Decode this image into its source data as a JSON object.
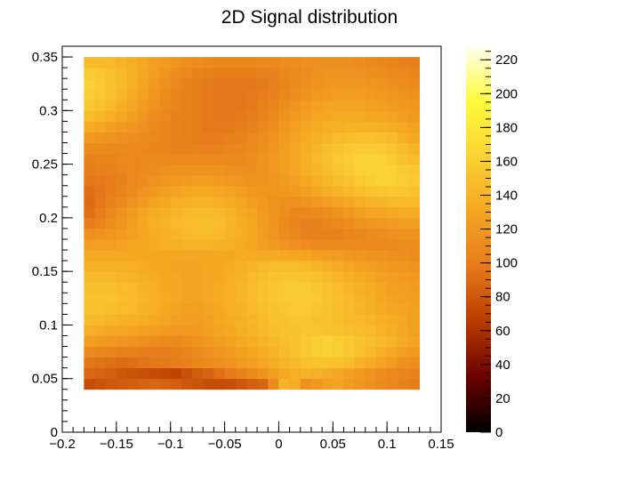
{
  "chart_data": {
    "type": "heatmap",
    "title": "2D Signal distribution",
    "xlabel": "",
    "ylabel": "",
    "xlim": [
      -0.2,
      0.15
    ],
    "ylim": [
      0,
      0.36
    ],
    "zlim": [
      0,
      228
    ],
    "x_ticks": [
      -0.2,
      -0.15,
      -0.1,
      -0.05,
      0,
      0.05,
      0.1,
      0.15
    ],
    "x_tick_labels": [
      "−0.2",
      "−0.15",
      "−0.1",
      "−0.05",
      "0",
      "0.05",
      "0.1",
      "0.15"
    ],
    "y_ticks": [
      0,
      0.05,
      0.1,
      0.15,
      0.2,
      0.25,
      0.3,
      0.35
    ],
    "y_tick_labels": [
      "0",
      "0.05",
      "0.1",
      "0.15",
      "0.2",
      "0.25",
      "0.3",
      "0.35"
    ],
    "colorbar_ticks": [
      0,
      20,
      40,
      60,
      80,
      100,
      120,
      140,
      160,
      180,
      200,
      220
    ],
    "colorbar_tick_labels": [
      "0",
      "20",
      "40",
      "60",
      "80",
      "100",
      "120",
      "140",
      "160",
      "180",
      "200",
      "220"
    ],
    "colormap": "black-darkred-orange-yellow-white",
    "colormap_stops": [
      "#000000",
      "#6a0000",
      "#b83a00",
      "#e67a1a",
      "#f5a623",
      "#fbd233",
      "#fdfc3a",
      "#fffff0"
    ],
    "grid": false,
    "bins": {
      "x_min": -0.18,
      "x_max": 0.13,
      "nx": 31,
      "y_min": 0.04,
      "y_max": 0.35,
      "ny": 31
    },
    "z": [
      [
        75,
        78,
        80,
        82,
        84,
        86,
        88,
        86,
        84,
        80,
        78,
        75,
        74,
        76,
        80,
        84,
        86,
        110,
        140,
        135,
        115,
        120,
        125,
        128,
        122,
        118,
        114,
        110,
        108,
        104,
        100
      ],
      [
        88,
        86,
        84,
        80,
        78,
        76,
        74,
        72,
        70,
        76,
        82,
        86,
        92,
        98,
        104,
        110,
        116,
        124,
        132,
        138,
        140,
        138,
        134,
        130,
        126,
        120,
        116,
        112,
        108,
        106,
        104
      ],
      [
        96,
        94,
        92,
        90,
        92,
        94,
        96,
        98,
        100,
        104,
        108,
        110,
        114,
        118,
        122,
        126,
        130,
        136,
        142,
        146,
        150,
        152,
        152,
        150,
        146,
        140,
        134,
        128,
        122,
        116,
        112
      ],
      [
        110,
        108,
        106,
        104,
        102,
        100,
        100,
        100,
        102,
        106,
        110,
        114,
        118,
        122,
        126,
        130,
        134,
        140,
        146,
        150,
        156,
        160,
        162,
        160,
        156,
        150,
        144,
        138,
        132,
        126,
        120
      ],
      [
        124,
        122,
        120,
        118,
        116,
        114,
        112,
        110,
        110,
        112,
        116,
        120,
        124,
        128,
        132,
        136,
        140,
        144,
        148,
        152,
        156,
        160,
        162,
        160,
        156,
        152,
        148,
        144,
        140,
        134,
        128
      ],
      [
        136,
        134,
        132,
        130,
        128,
        126,
        124,
        122,
        120,
        120,
        122,
        124,
        128,
        132,
        136,
        140,
        144,
        148,
        150,
        152,
        154,
        154,
        152,
        150,
        148,
        146,
        144,
        140,
        136,
        132,
        126
      ],
      [
        146,
        144,
        142,
        140,
        138,
        136,
        132,
        130,
        126,
        124,
        124,
        126,
        130,
        134,
        138,
        142,
        146,
        150,
        152,
        154,
        154,
        152,
        150,
        148,
        146,
        144,
        142,
        138,
        134,
        130,
        126
      ],
      [
        150,
        150,
        148,
        146,
        144,
        140,
        136,
        132,
        128,
        126,
        126,
        128,
        132,
        136,
        140,
        144,
        148,
        152,
        154,
        156,
        156,
        154,
        152,
        148,
        146,
        142,
        138,
        134,
        130,
        128,
        126
      ],
      [
        150,
        150,
        150,
        148,
        146,
        142,
        138,
        134,
        130,
        128,
        128,
        130,
        134,
        138,
        142,
        146,
        150,
        154,
        156,
        158,
        158,
        156,
        152,
        148,
        144,
        140,
        136,
        132,
        128,
        126,
        124
      ],
      [
        148,
        148,
        148,
        146,
        144,
        140,
        136,
        132,
        130,
        128,
        128,
        130,
        134,
        138,
        142,
        146,
        150,
        154,
        156,
        158,
        158,
        154,
        150,
        146,
        142,
        138,
        134,
        130,
        126,
        124,
        122
      ],
      [
        144,
        144,
        144,
        142,
        140,
        138,
        134,
        132,
        130,
        128,
        128,
        130,
        132,
        136,
        140,
        144,
        148,
        152,
        154,
        154,
        152,
        150,
        146,
        142,
        138,
        134,
        130,
        126,
        124,
        122,
        120
      ],
      [
        138,
        138,
        138,
        138,
        136,
        134,
        132,
        130,
        128,
        128,
        128,
        130,
        132,
        134,
        138,
        142,
        144,
        146,
        146,
        146,
        144,
        142,
        138,
        134,
        130,
        126,
        124,
        122,
        120,
        118,
        116
      ],
      [
        132,
        132,
        132,
        132,
        132,
        132,
        130,
        130,
        130,
        130,
        130,
        130,
        132,
        132,
        134,
        134,
        134,
        134,
        132,
        130,
        128,
        126,
        124,
        122,
        120,
        118,
        116,
        116,
        114,
        114,
        112
      ],
      [
        124,
        126,
        126,
        128,
        130,
        132,
        134,
        136,
        138,
        140,
        140,
        140,
        138,
        136,
        134,
        130,
        126,
        122,
        118,
        114,
        112,
        110,
        110,
        110,
        110,
        110,
        110,
        110,
        110,
        112,
        112
      ],
      [
        114,
        116,
        118,
        122,
        126,
        130,
        134,
        138,
        142,
        144,
        146,
        146,
        144,
        140,
        136,
        130,
        124,
        118,
        112,
        108,
        104,
        102,
        102,
        104,
        106,
        108,
        110,
        112,
        114,
        116,
        116
      ],
      [
        100,
        106,
        112,
        118,
        124,
        130,
        136,
        140,
        144,
        146,
        148,
        148,
        146,
        142,
        136,
        130,
        122,
        116,
        110,
        106,
        104,
        104,
        106,
        108,
        112,
        116,
        118,
        120,
        122,
        124,
        124
      ],
      [
        92,
        100,
        108,
        116,
        122,
        128,
        134,
        138,
        142,
        144,
        146,
        146,
        144,
        140,
        134,
        128,
        122,
        116,
        112,
        108,
        108,
        110,
        112,
        116,
        120,
        124,
        128,
        130,
        132,
        134,
        134
      ],
      [
        90,
        96,
        104,
        110,
        116,
        122,
        128,
        132,
        136,
        138,
        140,
        140,
        138,
        134,
        130,
        124,
        120,
        116,
        114,
        114,
        116,
        120,
        124,
        128,
        132,
        136,
        140,
        142,
        144,
        144,
        144
      ],
      [
        92,
        96,
        100,
        106,
        110,
        116,
        120,
        124,
        128,
        130,
        132,
        132,
        130,
        128,
        124,
        120,
        118,
        118,
        120,
        122,
        126,
        130,
        136,
        140,
        144,
        148,
        152,
        154,
        156,
        154,
        152
      ],
      [
        96,
        98,
        100,
        104,
        108,
        112,
        116,
        118,
        120,
        122,
        124,
        124,
        122,
        120,
        118,
        116,
        116,
        118,
        122,
        126,
        130,
        136,
        142,
        148,
        152,
        156,
        160,
        162,
        162,
        160,
        156
      ],
      [
        100,
        102,
        104,
        106,
        108,
        110,
        112,
        114,
        116,
        116,
        116,
        116,
        116,
        114,
        114,
        114,
        116,
        120,
        124,
        130,
        136,
        142,
        148,
        154,
        158,
        162,
        164,
        164,
        162,
        158,
        154
      ],
      [
        104,
        106,
        106,
        108,
        108,
        110,
        110,
        110,
        110,
        110,
        110,
        110,
        110,
        110,
        110,
        112,
        116,
        120,
        126,
        132,
        138,
        144,
        150,
        156,
        160,
        164,
        164,
        162,
        158,
        152,
        146
      ],
      [
        110,
        110,
        110,
        110,
        108,
        108,
        106,
        106,
        104,
        104,
        104,
        104,
        104,
        106,
        108,
        110,
        114,
        118,
        124,
        130,
        136,
        142,
        148,
        152,
        156,
        158,
        158,
        156,
        152,
        146,
        140
      ],
      [
        120,
        118,
        116,
        114,
        112,
        110,
        108,
        106,
        104,
        102,
        100,
        100,
        100,
        102,
        104,
        108,
        112,
        116,
        122,
        128,
        134,
        138,
        142,
        146,
        148,
        150,
        150,
        148,
        144,
        138,
        132
      ],
      [
        134,
        130,
        126,
        122,
        118,
        114,
        110,
        106,
        104,
        102,
        100,
        98,
        98,
        98,
        100,
        104,
        108,
        114,
        120,
        126,
        130,
        134,
        136,
        138,
        140,
        140,
        140,
        138,
        134,
        130,
        126
      ],
      [
        146,
        142,
        136,
        130,
        124,
        118,
        112,
        108,
        104,
        102,
        100,
        98,
        96,
        96,
        98,
        100,
        104,
        110,
        116,
        122,
        126,
        130,
        132,
        134,
        134,
        134,
        132,
        130,
        128,
        124,
        120
      ],
      [
        154,
        150,
        144,
        136,
        130,
        122,
        116,
        110,
        106,
        102,
        100,
        98,
        96,
        96,
        96,
        98,
        102,
        106,
        112,
        118,
        122,
        126,
        128,
        128,
        128,
        128,
        126,
        124,
        122,
        120,
        118
      ],
      [
        160,
        156,
        150,
        142,
        134,
        126,
        118,
        112,
        106,
        102,
        100,
        98,
        96,
        96,
        96,
        98,
        100,
        104,
        108,
        112,
        116,
        120,
        122,
        124,
        124,
        124,
        122,
        120,
        118,
        116,
        114
      ],
      [
        162,
        158,
        152,
        144,
        136,
        128,
        120,
        114,
        108,
        104,
        100,
        98,
        96,
        96,
        96,
        96,
        98,
        102,
        106,
        110,
        114,
        116,
        118,
        120,
        120,
        120,
        118,
        116,
        114,
        112,
        110
      ],
      [
        156,
        154,
        150,
        144,
        138,
        130,
        124,
        118,
        112,
        108,
        104,
        102,
        100,
        100,
        100,
        100,
        102,
        104,
        108,
        110,
        112,
        114,
        116,
        116,
        116,
        116,
        114,
        112,
        110,
        108,
        106
      ],
      [
        146,
        146,
        144,
        140,
        136,
        132,
        126,
        122,
        118,
        114,
        112,
        110,
        108,
        108,
        108,
        108,
        110,
        110,
        112,
        112,
        114,
        114,
        114,
        114,
        114,
        112,
        110,
        108,
        106,
        104,
        102
      ]
    ]
  }
}
